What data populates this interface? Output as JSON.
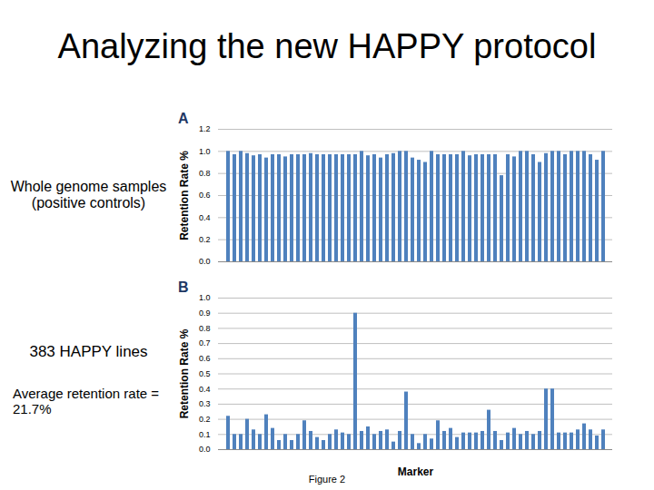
{
  "slide": {
    "title": "Analyzing the new HAPPY protocol",
    "labels": [
      "Whole genome samples (positive controls)",
      "383 HAPPY lines",
      "Average retention rate = 21.7%"
    ],
    "caption": "Figure 2"
  },
  "chart_data": [
    {
      "type": "bar",
      "title": "A",
      "y_label": "Retention Rate %",
      "color": "#4f81bd",
      "categories": [
        null,
        null,
        null,
        null,
        null,
        null,
        null,
        null,
        null,
        null,
        null,
        null,
        null,
        null,
        null,
        null,
        null,
        null,
        null,
        null,
        null,
        null,
        null,
        null,
        null,
        null,
        null,
        null,
        null,
        null,
        null,
        null,
        null,
        null,
        null,
        null,
        null,
        null,
        null,
        null,
        null,
        null,
        null,
        null,
        null,
        null,
        null,
        null,
        null,
        null,
        null,
        null,
        null,
        null,
        null,
        null,
        null,
        null,
        null,
        null
      ],
      "values": [
        1,
        0.97,
        1,
        0.98,
        0.96,
        0.97,
        0.94,
        0.97,
        0.97,
        0.95,
        0.97,
        0.97,
        0.97,
        0.98,
        0.97,
        0.97,
        0.97,
        0.97,
        0.97,
        0.97,
        0.97,
        1,
        0.96,
        0.97,
        0.94,
        0.97,
        0.98,
        1,
        1,
        0.94,
        0.92,
        0.9,
        1,
        0.97,
        0.97,
        0.97,
        0.97,
        1,
        0.96,
        0.97,
        0.97,
        0.97,
        0.97,
        0.78,
        0.97,
        0.95,
        1,
        1,
        0.97,
        0.9,
        0.98,
        1,
        1,
        0.97,
        1,
        1,
        1,
        0.97,
        0.92,
        1
      ],
      "ylim": [
        0,
        1.2
      ],
      "yticks": [
        0,
        0.2,
        0.4,
        0.6,
        0.8,
        1,
        1.2
      ],
      "grid": true
    },
    {
      "type": "bar",
      "title": "B",
      "y_label": "Retention Rate %",
      "x_label": "Marker",
      "color": "#4f81bd",
      "categories": [
        null,
        null,
        null,
        null,
        null,
        null,
        null,
        null,
        null,
        null,
        null,
        null,
        null,
        null,
        null,
        null,
        null,
        null,
        null,
        null,
        null,
        null,
        null,
        null,
        null,
        null,
        null,
        null,
        null,
        null,
        null,
        null,
        null,
        null,
        null,
        null,
        null,
        null,
        null,
        null,
        null,
        null,
        null,
        null,
        null,
        null,
        null,
        null,
        null,
        null,
        null,
        null,
        null,
        null,
        null,
        null,
        null,
        null,
        null,
        null
      ],
      "values": [
        0.22,
        0.1,
        0.1,
        0.2,
        0.13,
        0.1,
        0.23,
        0.14,
        0.06,
        0.1,
        0.06,
        0.1,
        0.19,
        0.12,
        0.08,
        0.06,
        0.1,
        0.13,
        0.11,
        0.1,
        0.9,
        0.12,
        0.15,
        0.1,
        0.12,
        0.13,
        0.05,
        0.12,
        0.38,
        0.1,
        0.04,
        0.1,
        0.07,
        0.19,
        0.12,
        0.14,
        0.08,
        0.11,
        0.11,
        0.11,
        0.12,
        0.26,
        0.12,
        0.06,
        0.11,
        0.14,
        0.1,
        0.12,
        0.1,
        0.12,
        0.4,
        0.4,
        0.11,
        0.11,
        0.11,
        0.13,
        0.17,
        0.13,
        0.09,
        0.13
      ],
      "ylim": [
        0,
        1
      ],
      "yticks": [
        0,
        0.1,
        0.2,
        0.3,
        0.4,
        0.5,
        0.6,
        0.7,
        0.8,
        0.9,
        1
      ],
      "grid": true
    }
  ]
}
